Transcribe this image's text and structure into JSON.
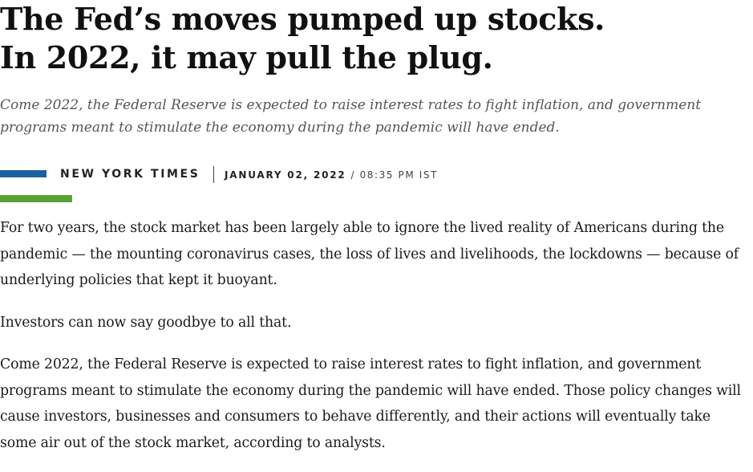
{
  "article": {
    "headline": "The Fed’s moves pumped up stocks. In 2022, it may pull the plug.",
    "summary": "Come 2022, the Federal Reserve is expected to raise interest rates to fight inflation, and government programs meant to stimulate the economy during the pandemic will have ended.",
    "byline": {
      "source": "NEW YORK TIMES",
      "date": "JANUARY 02, 2022",
      "separator": "/",
      "time": "08:35 PM IST"
    },
    "paragraphs": [
      "For two years, the stock market has been largely able to ignore the lived reality of Americans during the pandemic — the mounting coronavirus cases, the loss of lives and livelihoods, the lockdowns — because of underlying policies that kept it buoyant.",
      "Investors can now say goodbye to all that.",
      "Come 2022, the Federal Reserve is expected to raise interest rates to fight inflation, and government programs meant to stimulate the economy during the pandemic will have ended. Those policy changes will cause investors, businesses and consumers to behave differently, and their actions will eventually take some air out of the stock market, according to analysts."
    ]
  },
  "colors": {
    "accent_blue": "#1d5fa3",
    "accent_green": "#58a236",
    "summary_text": "#555555",
    "body_text": "#1a1a1a"
  }
}
